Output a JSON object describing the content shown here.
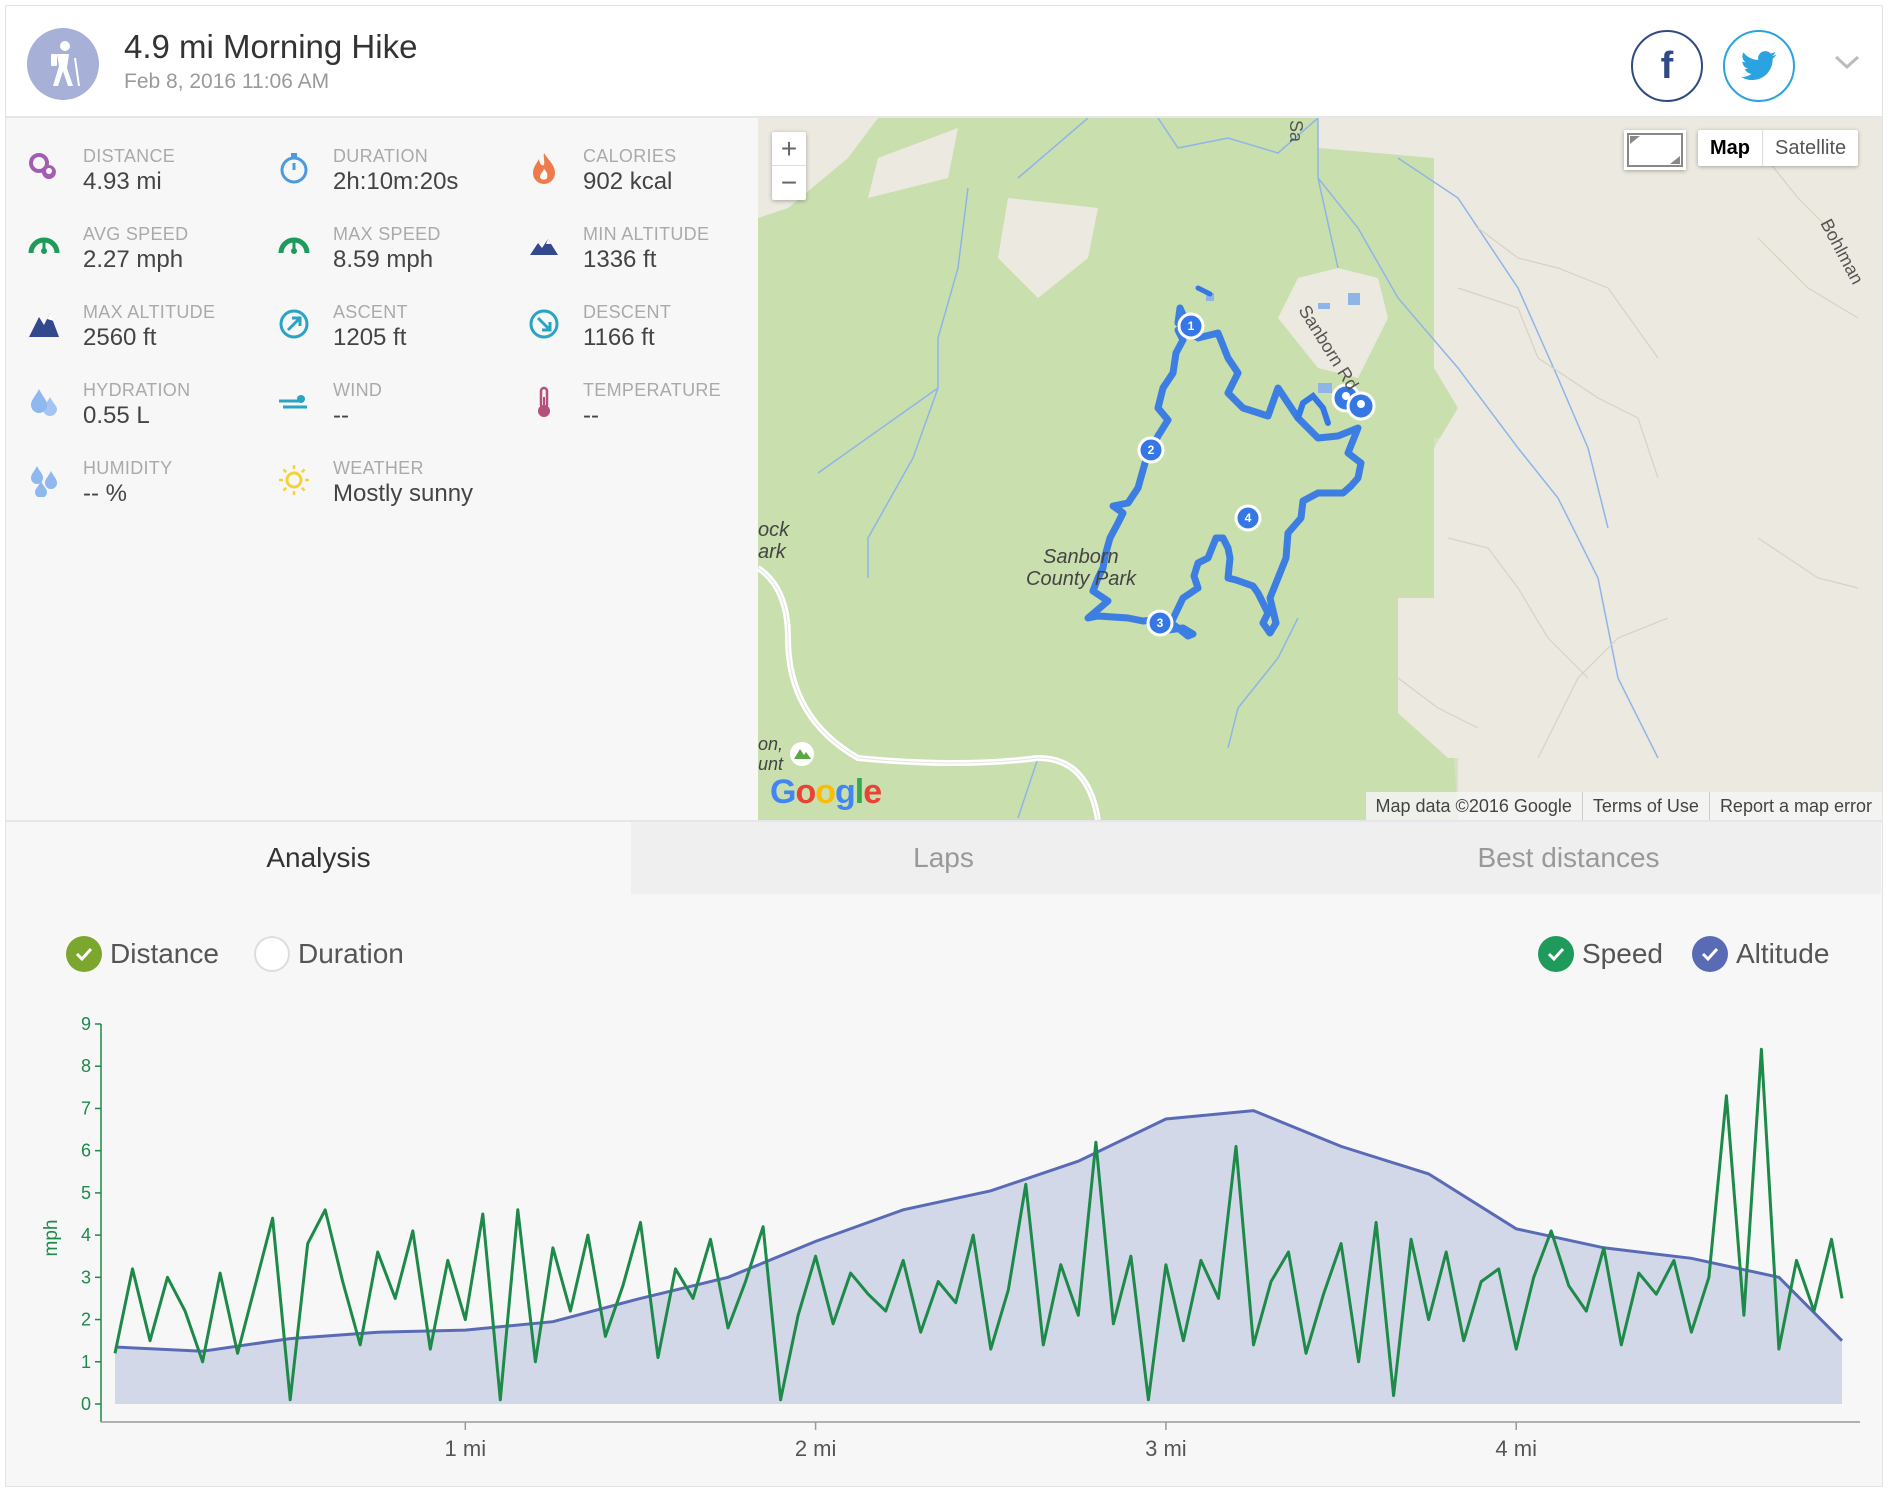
{
  "header": {
    "title": "4.9 mi Morning Hike",
    "date": "Feb 8, 2016 11:06 AM",
    "activity_icon": "hiker-icon",
    "share": [
      "facebook-icon",
      "twitter-icon"
    ]
  },
  "stats": [
    {
      "label": "DISTANCE",
      "value": "4.93 mi",
      "icon": "distance-pin-icon",
      "color": "#a25fb0"
    },
    {
      "label": "DURATION",
      "value": "2h:10m:20s",
      "icon": "stopwatch-icon",
      "color": "#4a9be0"
    },
    {
      "label": "CALORIES",
      "value": "902 kcal",
      "icon": "flame-icon",
      "color": "#ee7b4b"
    },
    {
      "label": "AVG SPEED",
      "value": "2.27 mph",
      "icon": "speedometer-icon",
      "color": "#1e9a5b"
    },
    {
      "label": "MAX SPEED",
      "value": "8.59 mph",
      "icon": "speedometer-icon",
      "color": "#1e9a5b"
    },
    {
      "label": "MIN ALTITUDE",
      "value": "1336 ft",
      "icon": "mountain-small-icon",
      "color": "#34488e"
    },
    {
      "label": "MAX ALTITUDE",
      "value": "2560 ft",
      "icon": "mountain-icon",
      "color": "#34488e"
    },
    {
      "label": "ASCENT",
      "value": "1205 ft",
      "icon": "ascent-arrow-icon",
      "color": "#2aa3c4"
    },
    {
      "label": "DESCENT",
      "value": "1166 ft",
      "icon": "descent-arrow-icon",
      "color": "#2aa3c4"
    },
    {
      "label": "HYDRATION",
      "value": "0.55 L",
      "icon": "drops-icon",
      "color": "#8fb8ef"
    },
    {
      "label": "WIND",
      "value": "--",
      "icon": "wind-icon",
      "color": "#2aa3c4"
    },
    {
      "label": "TEMPERATURE",
      "value": "--",
      "icon": "thermometer-icon",
      "color": "#b5507a"
    },
    {
      "label": "HUMIDITY",
      "value": "-- %",
      "icon": "humidity-drops-icon",
      "color": "#8fb8ef"
    },
    {
      "label": "WEATHER",
      "value": "Mostly sunny",
      "icon": "sun-icon",
      "color": "#f5d23a"
    }
  ],
  "map": {
    "zoom_in": "+",
    "zoom_out": "−",
    "type_map": "Map",
    "type_satellite": "Satellite",
    "park_label_1": "Sanborn",
    "park_label_2": "County Park",
    "road_label_1": "Sanborn Rd",
    "road_label_2": "Bohlman",
    "road_label_3": "Sa",
    "edge_label_1": "ock",
    "edge_label_2": "ark",
    "edge_label_3": "on,",
    "edge_label_4": "unt",
    "markers": [
      "1",
      "2",
      "3",
      "4"
    ],
    "google": "Google",
    "attribution": [
      "Map data ©2016 Google",
      "Terms of Use",
      "Report a map error"
    ]
  },
  "tabs": [
    {
      "label": "Analysis",
      "active": true
    },
    {
      "label": "Laps",
      "active": false
    },
    {
      "label": "Best distances",
      "active": false
    }
  ],
  "toggles": {
    "distance": {
      "label": "Distance",
      "checked": true,
      "color": "#7ba72f"
    },
    "duration": {
      "label": "Duration",
      "checked": false
    },
    "speed": {
      "label": "Speed",
      "checked": true,
      "color": "#1e9a5b"
    },
    "altitude": {
      "label": "Altitude",
      "checked": true,
      "color": "#5a6bb5"
    }
  },
  "chart_data": {
    "type": "line",
    "xlabel": "",
    "ylabel": "mph",
    "xlim": [
      0,
      4.93
    ],
    "ylim": [
      0,
      9
    ],
    "y_ticks": [
      0,
      1,
      2,
      3,
      4,
      5,
      6,
      7,
      8,
      9
    ],
    "x_ticks": [
      {
        "value": 1,
        "label": "1 mi"
      },
      {
        "value": 2,
        "label": "2 mi"
      },
      {
        "value": 3,
        "label": "3 mi"
      },
      {
        "value": 4,
        "label": "4 mi"
      }
    ],
    "grid": false,
    "series": [
      {
        "name": "Speed",
        "color": "#1e8a4a",
        "axis": "mph",
        "x": [
          0.0,
          0.05,
          0.1,
          0.15,
          0.2,
          0.25,
          0.3,
          0.35,
          0.4,
          0.45,
          0.5,
          0.55,
          0.6,
          0.65,
          0.7,
          0.75,
          0.8,
          0.85,
          0.9,
          0.95,
          1.0,
          1.05,
          1.1,
          1.15,
          1.2,
          1.25,
          1.3,
          1.35,
          1.4,
          1.45,
          1.5,
          1.55,
          1.6,
          1.65,
          1.7,
          1.75,
          1.8,
          1.85,
          1.9,
          1.95,
          2.0,
          2.05,
          2.1,
          2.15,
          2.2,
          2.25,
          2.3,
          2.35,
          2.4,
          2.45,
          2.5,
          2.55,
          2.6,
          2.65,
          2.7,
          2.75,
          2.8,
          2.85,
          2.9,
          2.95,
          3.0,
          3.05,
          3.1,
          3.15,
          3.2,
          3.25,
          3.3,
          3.35,
          3.4,
          3.45,
          3.5,
          3.55,
          3.6,
          3.65,
          3.7,
          3.75,
          3.8,
          3.85,
          3.9,
          3.95,
          4.0,
          4.05,
          4.1,
          4.15,
          4.2,
          4.25,
          4.3,
          4.35,
          4.4,
          4.45,
          4.5,
          4.55,
          4.6,
          4.65,
          4.7,
          4.75,
          4.8,
          4.85,
          4.9,
          4.93
        ],
        "values": [
          1.2,
          3.2,
          1.5,
          3.0,
          2.2,
          1.0,
          3.1,
          1.2,
          2.8,
          4.4,
          0.1,
          3.8,
          4.6,
          2.9,
          1.4,
          3.6,
          2.5,
          4.1,
          1.3,
          3.4,
          2.0,
          4.5,
          0.1,
          4.6,
          1.0,
          3.7,
          2.2,
          4.0,
          1.6,
          2.8,
          4.3,
          1.1,
          3.2,
          2.5,
          3.9,
          1.8,
          2.9,
          4.2,
          0.1,
          2.1,
          3.5,
          1.9,
          3.1,
          2.6,
          2.2,
          3.4,
          1.7,
          2.9,
          2.4,
          4.0,
          1.3,
          2.7,
          5.2,
          1.4,
          3.3,
          2.1,
          6.2,
          1.9,
          3.5,
          0.1,
          3.3,
          1.5,
          3.4,
          2.5,
          6.1,
          1.4,
          2.9,
          3.6,
          1.2,
          2.6,
          3.8,
          1.0,
          4.3,
          0.2,
          3.9,
          2.0,
          3.6,
          1.5,
          2.9,
          3.2,
          1.3,
          3.0,
          4.1,
          2.8,
          2.2,
          3.7,
          1.4,
          3.1,
          2.6,
          3.4,
          1.7,
          3.0,
          7.3,
          2.1,
          8.4,
          1.3,
          3.4,
          2.2,
          3.9,
          2.5
        ]
      },
      {
        "name": "Altitude",
        "color": "#5a6bb5",
        "fill": "#d3d8e8",
        "axis": "hidden",
        "x": [
          0.0,
          0.25,
          0.5,
          0.75,
          1.0,
          1.25,
          1.5,
          1.75,
          2.0,
          2.25,
          2.5,
          2.75,
          3.0,
          3.25,
          3.5,
          3.75,
          4.0,
          4.25,
          4.5,
          4.75,
          4.93
        ],
        "values": [
          1.35,
          1.25,
          1.55,
          1.7,
          1.75,
          1.95,
          2.5,
          3.0,
          3.85,
          4.6,
          5.05,
          5.75,
          6.75,
          6.95,
          6.1,
          5.45,
          4.15,
          3.7,
          3.45,
          3.0,
          1.5
        ]
      }
    ]
  }
}
